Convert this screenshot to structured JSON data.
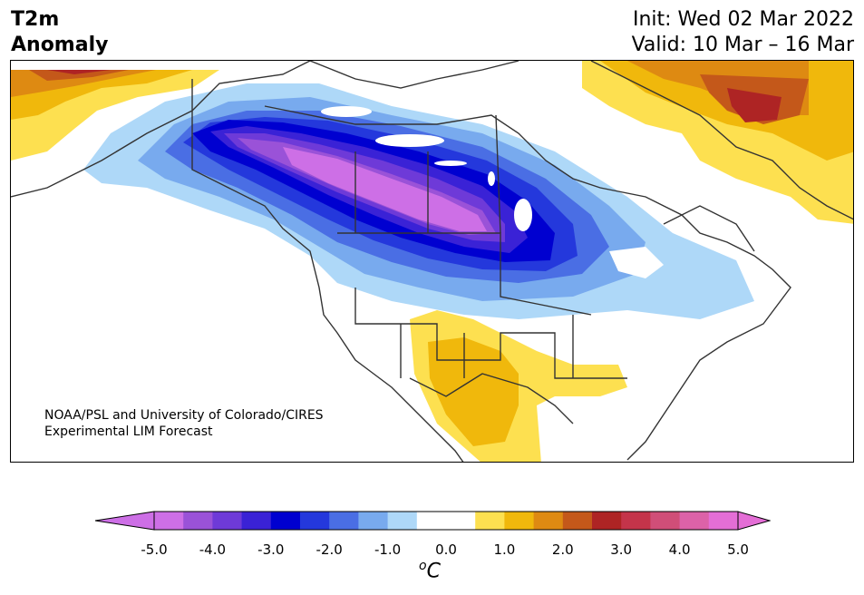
{
  "title": {
    "line1": "T2m",
    "line2": "Anomaly"
  },
  "dates": {
    "init": "Init: Wed 02 Mar 2022",
    "valid": "Valid: 10 Mar – 16 Mar"
  },
  "credit": {
    "line1": "NOAA/PSL and University of Colorado/CIRES",
    "line2": "Experimental LIM Forecast"
  },
  "colorbar": {
    "ticks": [
      "-5.0",
      "-4.0",
      "-3.0",
      "-2.0",
      "-1.0",
      "0.0",
      "1.0",
      "2.0",
      "3.0",
      "4.0",
      "5.0"
    ],
    "unit_symbol": "o",
    "unit_letter": "C",
    "colors": [
      "#cd6fe6",
      "#9a52d8",
      "#6e3ad8",
      "#3a22d6",
      "#0000d0",
      "#2438dc",
      "#4a6ee4",
      "#78aaee",
      "#aed8f8",
      "#ffffff",
      "#ffffff",
      "#fde050",
      "#f0b80c",
      "#de8a12",
      "#c4581a",
      "#ae2424",
      "#c4344a",
      "#d04e78",
      "#dc62a8",
      "#e46ed6"
    ],
    "min_color": "#cd6fe6",
    "max_color": "#e46ed6"
  }
}
